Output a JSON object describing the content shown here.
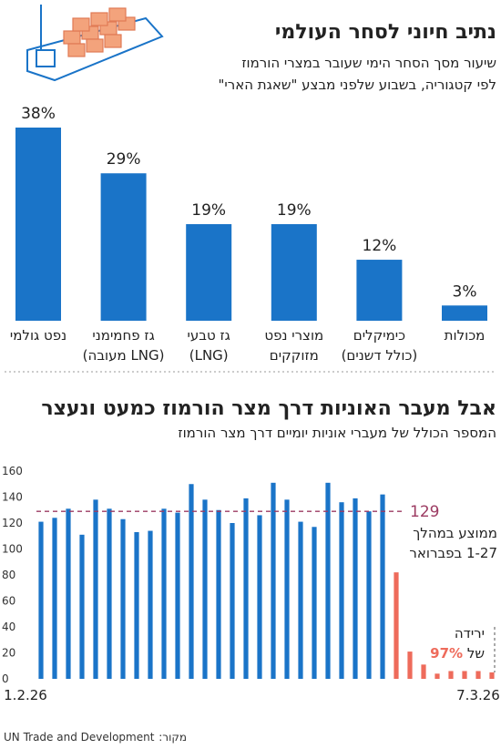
{
  "chart_data": [
    {
      "type": "bar",
      "title": "נתיב חיוני לסחר העולמי",
      "subtitle": [
        "שיעור מסך הסחר הימי שעובר במצרי הורמוז",
        "לפי קטגוריה, בשבוע שלפני מבצע \"שאגת הארי\""
      ],
      "categories": [
        [
          "נפט גולמי"
        ],
        [
          "גז פחמימני",
          "(LNG מעובה)"
        ],
        [
          "גז טבעי",
          "(LNG)"
        ],
        [
          "מוצרי נפט",
          "מזוקקים"
        ],
        [
          "כימיקלים",
          "(כולל דשנים)"
        ],
        [
          "מכולות"
        ]
      ],
      "values": [
        38,
        29,
        19,
        19,
        12,
        3
      ],
      "value_labels": [
        "38%",
        "29%",
        "19%",
        "19%",
        "12%",
        "3%"
      ],
      "color": "#1a74c8"
    },
    {
      "type": "bar",
      "title": "אבל מעבר האוניות דרך מצר הורמוז כמעט ונעצר",
      "subtitle": "המספר הכולל של מעברי אוניות יומיים דרך מצר הורמוז",
      "x": [
        "1.2.26",
        null,
        null,
        null,
        null,
        null,
        null,
        null,
        null,
        null,
        null,
        null,
        null,
        null,
        null,
        null,
        null,
        null,
        null,
        null,
        null,
        null,
        null,
        null,
        null,
        null,
        null,
        null,
        null,
        null,
        null,
        null,
        null,
        "7.3.26"
      ],
      "values": [
        121,
        124,
        131,
        111,
        138,
        131,
        123,
        113,
        114,
        131,
        128,
        150,
        138,
        130,
        120,
        139,
        126,
        151,
        138,
        121,
        117,
        151,
        136,
        139,
        129,
        142,
        82,
        21,
        11,
        4,
        6,
        6,
        6,
        5
      ],
      "colors": [
        "#1a74c8",
        "#1a74c8",
        "#1a74c8",
        "#1a74c8",
        "#1a74c8",
        "#1a74c8",
        "#1a74c8",
        "#1a74c8",
        "#1a74c8",
        "#1a74c8",
        "#1a74c8",
        "#1a74c8",
        "#1a74c8",
        "#1a74c8",
        "#1a74c8",
        "#1a74c8",
        "#1a74c8",
        "#1a74c8",
        "#1a74c8",
        "#1a74c8",
        "#1a74c8",
        "#1a74c8",
        "#1a74c8",
        "#1a74c8",
        "#1a74c8",
        "#1a74c8",
        "#ee6b5b",
        "#ee6b5b",
        "#ee6b5b",
        "#ee6b5b",
        "#ee6b5b",
        "#ee6b5b",
        "#ee6b5b",
        "#ee6b5b"
      ],
      "ylim": [
        0,
        160
      ],
      "yticks": [
        0,
        20,
        40,
        60,
        80,
        100,
        120,
        140,
        160
      ],
      "reference_line": {
        "value": 129,
        "color": "#9c3b62",
        "note": [
          "ממוצע במהלך",
          "1-27 בפברואר"
        ]
      },
      "drop_note": [
        "ירידה",
        "של",
        "97%"
      ],
      "drop_color": "#ee6b5b",
      "source_label": "מקור:",
      "source": "UN Trade and Development"
    }
  ]
}
